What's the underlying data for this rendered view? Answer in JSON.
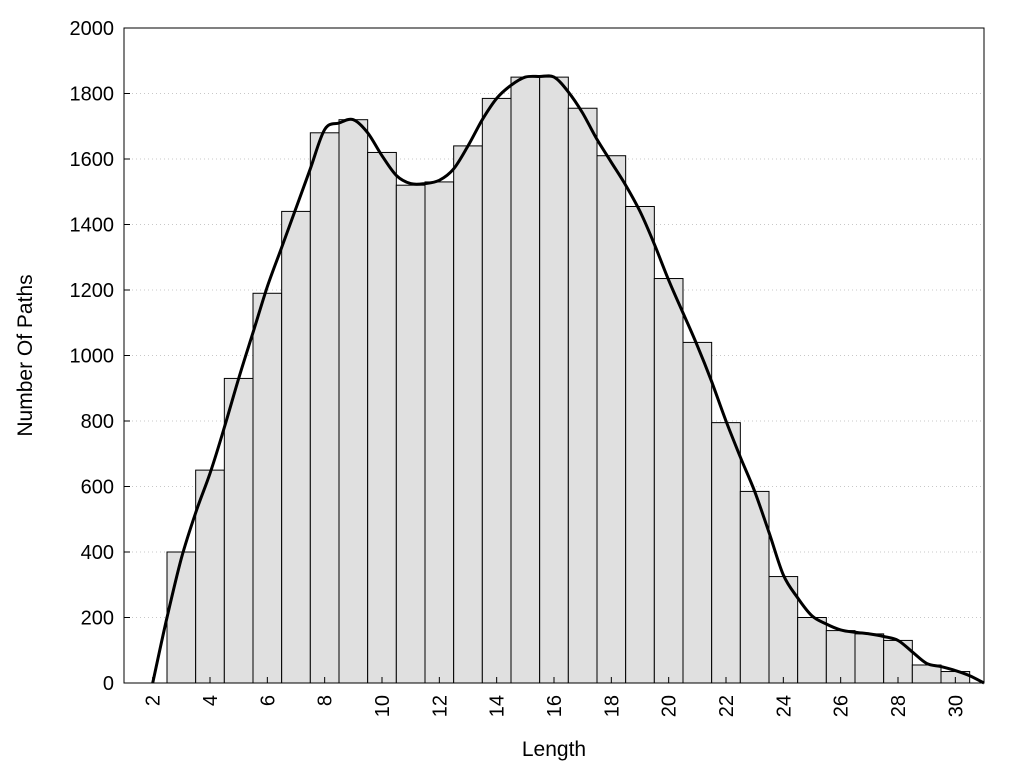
{
  "chart_data": {
    "type": "bar",
    "title": "",
    "xlabel": "Length",
    "ylabel": "Number Of Paths",
    "xlim": [
      1,
      31
    ],
    "ylim": [
      0,
      2000
    ],
    "x_ticks": [
      2,
      4,
      6,
      8,
      10,
      12,
      14,
      16,
      18,
      20,
      22,
      24,
      26,
      28,
      30
    ],
    "y_ticks": [
      0,
      200,
      400,
      600,
      800,
      1000,
      1200,
      1400,
      1600,
      1800,
      2000
    ],
    "grid": "horizontal-dotted",
    "bar_fill": "#e0e0e0",
    "bar_edge": "#000000",
    "x": [
      3,
      4,
      5,
      6,
      7,
      8,
      9,
      10,
      11,
      12,
      13,
      14,
      15,
      16,
      17,
      18,
      19,
      20,
      21,
      22,
      23,
      24,
      25,
      26,
      27,
      28,
      29,
      30
    ],
    "values": [
      400,
      650,
      930,
      1190,
      1440,
      1680,
      1720,
      1620,
      1520,
      1530,
      1640,
      1785,
      1850,
      1850,
      1755,
      1610,
      1455,
      1235,
      1040,
      795,
      585,
      325,
      200,
      160,
      150,
      130,
      55,
      35
    ],
    "curve": {
      "x": [
        2.0,
        2.5,
        3.0,
        3.5,
        4.0,
        4.5,
        5.0,
        5.5,
        6.0,
        6.5,
        7.0,
        7.5,
        8.0,
        8.5,
        9.0,
        9.5,
        10.0,
        10.5,
        11.0,
        11.5,
        12.0,
        12.5,
        13.0,
        13.5,
        14.0,
        14.5,
        15.0,
        15.5,
        16.0,
        16.5,
        17.0,
        17.5,
        18.0,
        18.5,
        19.0,
        19.5,
        20.0,
        20.5,
        21.0,
        21.5,
        22.0,
        22.5,
        23.0,
        23.5,
        24.0,
        24.5,
        25.0,
        25.5,
        26.0,
        26.5,
        27.0,
        27.5,
        28.0,
        28.5,
        29.0,
        29.5,
        30.0,
        30.5,
        31.0
      ],
      "y": [
        0,
        200,
        380,
        520,
        640,
        780,
        930,
        1070,
        1210,
        1330,
        1450,
        1570,
        1690,
        1710,
        1720,
        1680,
        1610,
        1550,
        1525,
        1525,
        1535,
        1570,
        1640,
        1720,
        1785,
        1825,
        1850,
        1852,
        1850,
        1805,
        1740,
        1660,
        1590,
        1520,
        1440,
        1340,
        1230,
        1130,
        1030,
        920,
        800,
        690,
        585,
        460,
        330,
        260,
        205,
        180,
        162,
        155,
        150,
        142,
        130,
        95,
        60,
        50,
        38,
        22,
        0
      ]
    }
  }
}
